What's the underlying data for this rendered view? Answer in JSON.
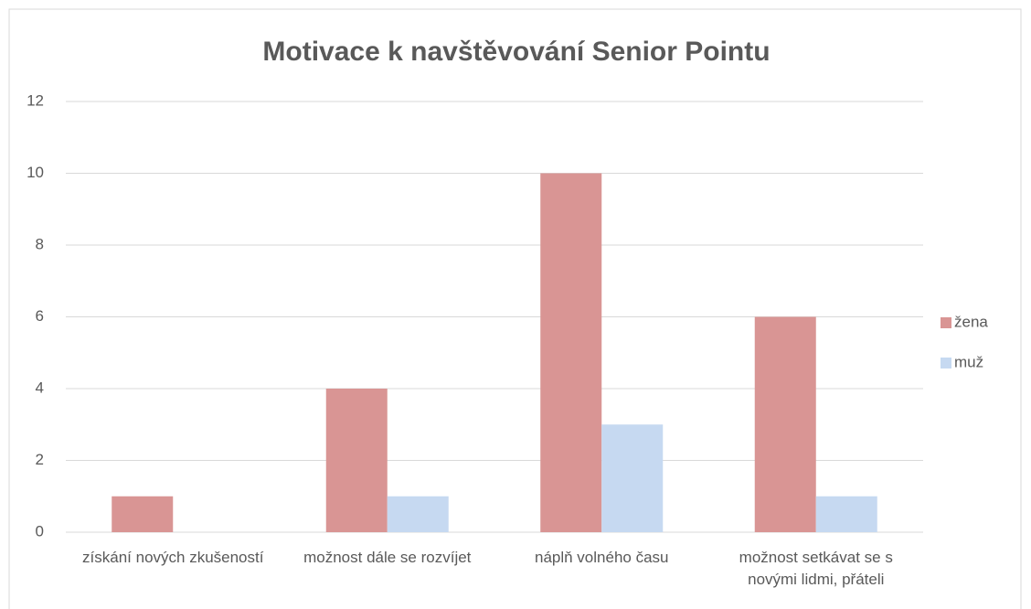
{
  "chart_data": {
    "type": "bar",
    "title": "Motivace k navštěvování Senior Pointu",
    "categories": [
      "získání nových zkušeností",
      "možnost dále se rozvíjet",
      "náplň volného času",
      "možnost setkávat se s novými lidmi, přáteli"
    ],
    "series": [
      {
        "name": "žena",
        "color": "#d99594",
        "values": [
          1,
          4,
          10,
          6
        ]
      },
      {
        "name": "muž",
        "color": "#c6d9f1",
        "values": [
          0,
          1,
          3,
          1
        ]
      }
    ],
    "ylim": [
      0,
      12
    ],
    "yticks": [
      0,
      2,
      4,
      6,
      8,
      10,
      12
    ],
    "grid": true,
    "legend": "right"
  }
}
